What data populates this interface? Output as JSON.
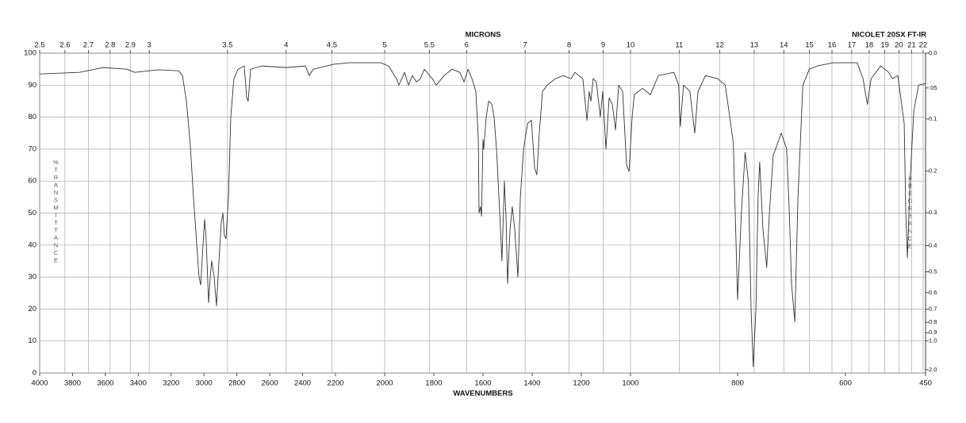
{
  "chart_data": {
    "type": "line",
    "title": "NICOLET 20SX FT-IR",
    "x_label": "WAVENUMBERS",
    "x2_label": "MICRONS",
    "y_label": "%TRANSMITTANCE",
    "y2_label": "ABSORBANCE",
    "color": "#333333",
    "grid": true,
    "xlim": [
      4000,
      450
    ],
    "xticks": [
      4000,
      3800,
      3600,
      3400,
      3200,
      3000,
      2800,
      2600,
      2400,
      2200,
      2000,
      1800,
      1600,
      1400,
      1200,
      1000,
      800,
      600,
      450
    ],
    "x2ticks": [
      2.5,
      2.6,
      2.7,
      2.8,
      2.9,
      3,
      3.5,
      4,
      4.5,
      5,
      5.5,
      6,
      7,
      8,
      9,
      10,
      11,
      12,
      13,
      14,
      15,
      16,
      17,
      18,
      19,
      20,
      21,
      22
    ],
    "ylim": [
      0,
      100
    ],
    "yticks": [
      0,
      10,
      20,
      30,
      40,
      50,
      60,
      70,
      80,
      90,
      100
    ],
    "y2ticks": [
      {
        "value": 0,
        "label": "0.0"
      },
      {
        "value": 0.05,
        "label": ".05"
      },
      0.1,
      0.2,
      0.3,
      0.4,
      0.5,
      0.6,
      0.7,
      0.8,
      0.9,
      {
        "value": 1,
        "label": "1.0"
      },
      {
        "value": 2,
        "label": "2.0"
      }
    ],
    "x": [
      4000,
      3759,
      3614,
      3469,
      3421,
      3276,
      3155,
      3131,
      3107,
      3098,
      3083,
      3064,
      3044,
      3030,
      3020,
      3006,
      2996,
      2987,
      2972,
      2962,
      2953,
      2938,
      2924,
      2909,
      2895,
      2885,
      2876,
      2866,
      2851,
      2837,
      2818,
      2793,
      2755,
      2740,
      2731,
      2716,
      2649,
      2504,
      2383,
      2359,
      2335,
      2214,
      2145,
      2016,
      1984,
      1952,
      1942,
      1919,
      1903,
      1887,
      1871,
      1855,
      1839,
      1806,
      1790,
      1758,
      1726,
      1694,
      1677,
      1661,
      1645,
      1629,
      1619,
      1616,
      1610,
      1606,
      1600,
      1597,
      1587,
      1577,
      1564,
      1555,
      1545,
      1532,
      1523,
      1513,
      1506,
      1500,
      1490,
      1481,
      1471,
      1458,
      1448,
      1435,
      1419,
      1403,
      1390,
      1381,
      1371,
      1358,
      1339,
      1306,
      1274,
      1242,
      1226,
      1210,
      1194,
      1177,
      1168,
      1161,
      1152,
      1139,
      1123,
      1113,
      1100,
      1087,
      1074,
      1061,
      1048,
      1032,
      1016,
      1006,
      997,
      993,
      978,
      970,
      963,
      948,
      919,
      910,
      907,
      901,
      889,
      880,
      874,
      860,
      837,
      823,
      808,
      800,
      793,
      786,
      780,
      775,
      771,
      766,
      762,
      759,
      753,
      746,
      741,
      734,
      719,
      709,
      704,
      700,
      694,
      688,
      679,
      667,
      652,
      623,
      578,
      567,
      559,
      552,
      534,
      519,
      512,
      502,
      490,
      487,
      484,
      479,
      472,
      463,
      450
    ],
    "values": [
      93.5,
      94,
      95.5,
      95,
      94,
      94.8,
      94.5,
      93,
      85,
      80,
      71,
      55,
      40,
      30,
      27.5,
      40,
      48,
      42,
      22,
      30,
      35,
      30,
      21,
      35,
      47,
      50,
      43,
      42,
      55,
      80,
      92,
      95,
      96,
      86,
      85,
      95,
      96,
      95.5,
      96,
      93,
      95,
      96.5,
      97,
      97,
      96,
      92,
      90,
      94,
      90,
      93,
      91,
      92,
      95,
      92,
      90,
      93,
      95,
      94,
      91,
      95,
      92,
      88,
      73,
      50,
      52,
      49,
      73,
      70,
      80,
      85,
      84,
      80,
      70,
      50,
      35,
      60,
      48,
      28,
      45,
      52,
      45,
      30,
      55,
      70,
      78,
      79,
      64,
      62,
      75,
      88,
      90,
      92,
      93,
      92,
      94,
      93,
      92,
      79,
      88,
      85,
      92,
      91,
      80,
      88,
      70,
      86,
      84,
      76,
      90,
      88,
      65,
      63,
      80,
      87,
      89,
      88,
      87,
      93,
      94,
      90,
      77,
      90,
      88,
      75,
      88,
      93,
      92,
      90,
      72,
      23,
      50,
      69,
      60,
      20,
      2,
      20,
      55,
      66,
      45,
      33,
      50,
      68,
      75,
      70,
      50,
      28,
      16,
      55,
      90,
      95,
      96,
      97,
      97,
      92,
      84,
      92,
      96,
      94,
      92,
      93,
      78,
      50,
      36,
      60,
      82,
      90,
      90.5
    ]
  }
}
